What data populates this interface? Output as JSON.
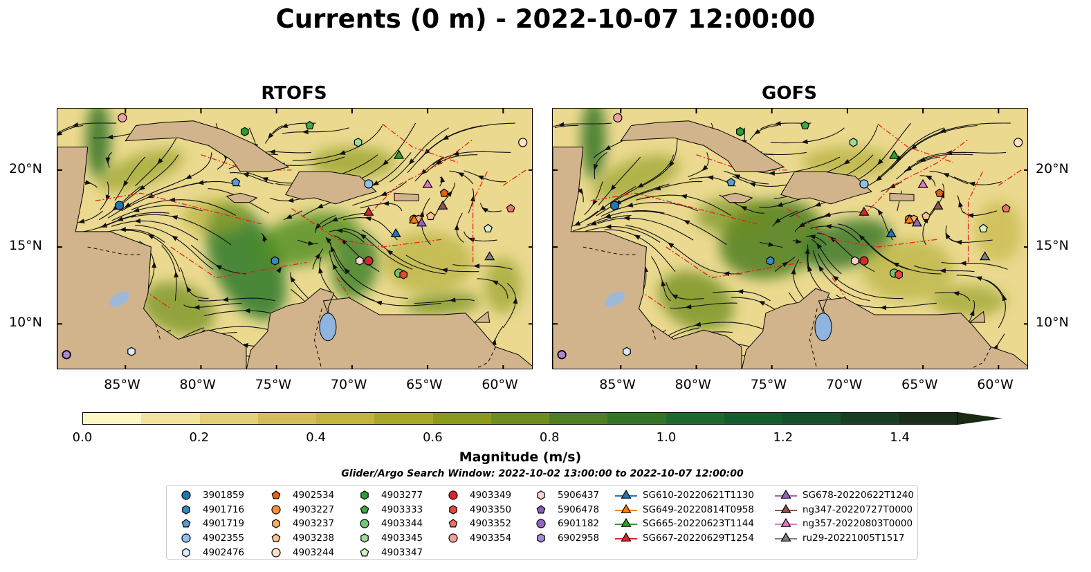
{
  "title": "Currents (0 m) - 2022-10-07 12:00:00",
  "panels": [
    {
      "title": "RTOFS"
    },
    {
      "title": "GOFS"
    }
  ],
  "map_extent": {
    "lon": [
      -89.5,
      -58
    ],
    "lat": [
      7,
      24
    ]
  },
  "x_ticks": [
    {
      "lon": -85,
      "label": "85°W"
    },
    {
      "lon": -80,
      "label": "80°W"
    },
    {
      "lon": -75,
      "label": "75°W"
    },
    {
      "lon": -70,
      "label": "70°W"
    },
    {
      "lon": -65,
      "label": "65°W"
    },
    {
      "lon": -60,
      "label": "60°W"
    }
  ],
  "y_ticks": [
    {
      "lat": 20,
      "label": "20°N"
    },
    {
      "lat": 15,
      "label": "15°N"
    },
    {
      "lat": 10,
      "label": "10°N"
    }
  ],
  "colorbar": {
    "label": "Magnitude (m/s)",
    "range": [
      0,
      1.5
    ],
    "extend": "max",
    "ticks": [
      {
        "value": 0.0,
        "label": "0.0"
      },
      {
        "value": 0.2,
        "label": "0.2"
      },
      {
        "value": 0.4,
        "label": "0.4"
      },
      {
        "value": 0.6,
        "label": "0.6"
      },
      {
        "value": 0.8,
        "label": "0.8"
      },
      {
        "value": 1.0,
        "label": "1.0"
      },
      {
        "value": 1.2,
        "label": "1.2"
      },
      {
        "value": 1.4,
        "label": "1.4"
      }
    ],
    "colors": [
      "#fdf7c6",
      "#f1e49a",
      "#e3cf77",
      "#d4bd58",
      "#c1b43f",
      "#a9a72a",
      "#8c9a1c",
      "#6e8d1d",
      "#4f7f22",
      "#347426",
      "#1c6a2e",
      "#165d2d",
      "#16502a",
      "#183f22",
      "#1a2f1a"
    ]
  },
  "search_window": "Glider/Argo Search Window: 2022-10-02 13:00:00 to 2022-10-07 12:00:00",
  "legend": [
    [
      {
        "label": "3901859",
        "marker": "circle",
        "color": "#1f77b4"
      },
      {
        "label": "4901716",
        "marker": "hexagon",
        "color": "#3a86c6"
      },
      {
        "label": "4901719",
        "marker": "pentagon",
        "color": "#5b9bd5"
      },
      {
        "label": "4902355",
        "marker": "circle",
        "color": "#8ec1ec"
      },
      {
        "label": "4902476",
        "marker": "hexagon",
        "color": "#d6ebfb"
      }
    ],
    [
      {
        "label": "4902534",
        "marker": "pentagon",
        "color": "#e6620b"
      },
      {
        "label": "4903227",
        "marker": "circle",
        "color": "#fd8d3c"
      },
      {
        "label": "4903237",
        "marker": "hexagon",
        "color": "#fdae6b"
      },
      {
        "label": "4903238",
        "marker": "pentagon",
        "color": "#fdc48f"
      },
      {
        "label": "4903244",
        "marker": "circle",
        "color": "#fde0c5"
      }
    ],
    [
      {
        "label": "4903277",
        "marker": "hexagon",
        "color": "#2ca02c"
      },
      {
        "label": "4903333",
        "marker": "pentagon",
        "color": "#3fa843"
      },
      {
        "label": "4903344",
        "marker": "circle",
        "color": "#74c476"
      },
      {
        "label": "4903345",
        "marker": "hexagon",
        "color": "#a1d99b"
      },
      {
        "label": "4903347",
        "marker": "pentagon",
        "color": "#d3f0c6"
      }
    ],
    [
      {
        "label": "4903349",
        "marker": "circle",
        "color": "#d62728"
      },
      {
        "label": "4903350",
        "marker": "hexagon",
        "color": "#e34a33"
      },
      {
        "label": "4903352",
        "marker": "pentagon",
        "color": "#f0716a"
      },
      {
        "label": "4903354",
        "marker": "circle",
        "color": "#f4a09c"
      }
    ],
    [
      {
        "label": "5906437",
        "marker": "hexagon",
        "color": "#fbd0d0"
      },
      {
        "label": "5906478",
        "marker": "pentagon",
        "color": "#8c5bbf"
      },
      {
        "label": "6901182",
        "marker": "circle",
        "color": "#9467bd"
      },
      {
        "label": "6902958",
        "marker": "hexagon",
        "color": "#a88ad3"
      }
    ],
    [
      {
        "label": "SG610-20220621T1130",
        "marker": "triangle",
        "color": "#1f77b4"
      },
      {
        "label": "SG649-20220814T0958",
        "marker": "triangle",
        "color": "#ff7f0e"
      },
      {
        "label": "SG665-20220623T1144",
        "marker": "triangle",
        "color": "#2ca02c"
      },
      {
        "label": "SG667-20220629T1254",
        "marker": "triangle",
        "color": "#d62728"
      }
    ],
    [
      {
        "label": "SG678-20220622T1240",
        "marker": "triangle",
        "color": "#9467bd"
      },
      {
        "label": "ng347-20220727T0000",
        "marker": "triangle",
        "color": "#8c564b"
      },
      {
        "label": "ng357-20220803T0000",
        "marker": "triangle",
        "color": "#e377c2"
      },
      {
        "label": "ru29-20221005T1517",
        "marker": "triangle",
        "color": "#7f7f7f"
      }
    ]
  ],
  "platforms": [
    {
      "id": "3901859",
      "lon": -85.4,
      "lat": 17.7
    },
    {
      "id": "4901716",
      "lon": -75.1,
      "lat": 14.1
    },
    {
      "id": "4901719",
      "lon": -77.7,
      "lat": 19.2
    },
    {
      "id": "4902355",
      "lon": -68.9,
      "lat": 19.1
    },
    {
      "id": "4902476",
      "lon": -84.6,
      "lat": 8.2
    },
    {
      "id": "4902534",
      "lon": -63.9,
      "lat": 18.5
    },
    {
      "id": "4903227",
      "lon": -65.9,
      "lat": 16.8
    },
    {
      "id": "4903237",
      "lon": -65.6,
      "lat": 16.8
    },
    {
      "id": "4903238",
      "lon": -64.8,
      "lat": 17.0
    },
    {
      "id": "4903244",
      "lon": -58.7,
      "lat": 21.8
    },
    {
      "id": "4903277",
      "lon": -77.1,
      "lat": 22.5
    },
    {
      "id": "4903333",
      "lon": -72.8,
      "lat": 22.9
    },
    {
      "id": "4903344",
      "lon": -66.9,
      "lat": 13.3
    },
    {
      "id": "4903345",
      "lon": -69.6,
      "lat": 21.8
    },
    {
      "id": "4903347",
      "lon": -61.0,
      "lat": 16.2
    },
    {
      "id": "4903349",
      "lon": -68.9,
      "lat": 14.1
    },
    {
      "id": "4903350",
      "lon": -66.6,
      "lat": 13.2
    },
    {
      "id": "4903352",
      "lon": -59.5,
      "lat": 17.5
    },
    {
      "id": "4903354",
      "lon": -85.2,
      "lat": 23.4
    },
    {
      "id": "5906437",
      "lon": -69.5,
      "lat": 14.1
    },
    {
      "id": "5906478",
      "lon": -88.9,
      "lat": 8.0
    },
    {
      "id": "6901182",
      "lon": -88.9,
      "lat": 8.0
    },
    {
      "id": "6902958",
      "lon": -88.9,
      "lat": 8.0
    },
    {
      "id": "SG610-20220621T1130",
      "lon": -67.1,
      "lat": 15.9
    },
    {
      "id": "SG649-20220814T0958",
      "lon": -65.9,
      "lat": 16.8
    },
    {
      "id": "SG665-20220623T1144",
      "lon": -66.9,
      "lat": 21.0
    },
    {
      "id": "SG667-20220629T1254",
      "lon": -68.9,
      "lat": 17.3
    },
    {
      "id": "SG678-20220622T1240",
      "lon": -65.4,
      "lat": 16.6
    },
    {
      "id": "ng347-20220727T0000",
      "lon": -64.0,
      "lat": 17.7
    },
    {
      "id": "ng357-20220803T0000",
      "lon": -65.0,
      "lat": 19.1
    },
    {
      "id": "ru29-20221005T1517",
      "lon": -60.9,
      "lat": 14.4
    }
  ]
}
